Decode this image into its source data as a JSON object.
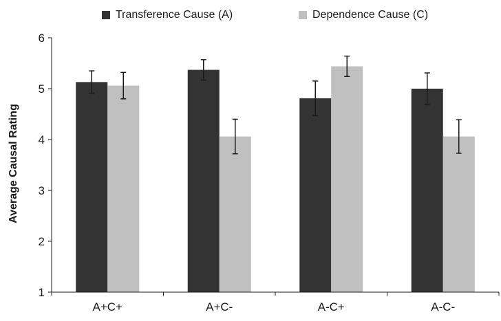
{
  "chart_data": {
    "type": "bar",
    "title": "",
    "xlabel": "",
    "ylabel": "Average Causal Rating",
    "categories": [
      "A+C+",
      "A+C-",
      "A-C+",
      "A-C-"
    ],
    "series": [
      {
        "name": "Transference Cause (A)",
        "color": "#333333",
        "values": [
          5.13,
          5.37,
          4.81,
          5.0
        ],
        "error": [
          0.22,
          0.2,
          0.34,
          0.31
        ]
      },
      {
        "name": "Dependence Cause (C)",
        "color": "#c0c0c0",
        "values": [
          5.06,
          4.06,
          5.44,
          4.06
        ],
        "error": [
          0.26,
          0.34,
          0.2,
          0.33
        ]
      }
    ],
    "ylim": [
      1,
      6
    ],
    "yticks": [
      1,
      2,
      3,
      4,
      5,
      6
    ],
    "grid": false,
    "legend_position": "top"
  }
}
